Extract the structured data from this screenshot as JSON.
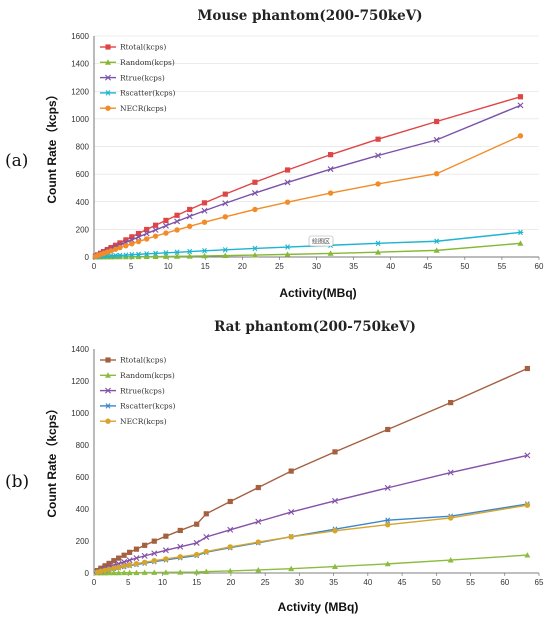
{
  "chart_data": [
    {
      "type": "line",
      "panel_label": "(a)",
      "title": "Mouse phantom(200-750keV)",
      "xlabel": "Activity(MBq)",
      "ylabel": "Count Rate（kcps）",
      "xlim": [
        0,
        60
      ],
      "ylim": [
        0,
        1600
      ],
      "xticks": [
        0,
        5,
        10,
        15,
        20,
        25,
        30,
        35,
        40,
        45,
        50,
        55,
        60
      ],
      "yticks": [
        0,
        200,
        400,
        600,
        800,
        1000,
        1200,
        1400,
        1600
      ],
      "grid": true,
      "legend_position": "top-left",
      "tooltip_text": "绘图区",
      "x": [
        0.2,
        0.5,
        0.9,
        1.3,
        1.8,
        2.3,
        2.9,
        3.5,
        4.3,
        5.1,
        6.0,
        7.1,
        8.3,
        9.7,
        11.2,
        12.9,
        14.9,
        17.7,
        21.7,
        26.1,
        31.9,
        38.3,
        46.2,
        57.5
      ],
      "series": [
        {
          "name": "Rtotal(kcps)",
          "color": "#e04545",
          "marker": "square",
          "values": [
            6,
            15,
            27,
            39,
            54,
            68,
            85,
            102,
            124,
            146,
            170,
            199,
            230,
            265,
            302,
            344,
            392,
            455,
            541,
            630,
            741,
            853,
            981,
            1160
          ]
        },
        {
          "name": "Random(kcps)",
          "color": "#86b833",
          "marker": "triangle",
          "values": [
            0,
            0,
            0,
            0,
            0,
            0,
            1,
            1,
            1,
            2,
            2,
            3,
            3,
            4,
            5,
            6,
            8,
            10,
            14,
            19,
            26,
            35,
            48,
            99
          ]
        },
        {
          "name": "Rtrue(kcps)",
          "color": "#7b52a8",
          "marker": "x",
          "values": [
            5,
            13,
            23,
            33,
            46,
            58,
            72,
            87,
            106,
            124,
            145,
            170,
            196,
            226,
            258,
            294,
            335,
            389,
            463,
            540,
            636,
            735,
            848,
            1098
          ]
        },
        {
          "name": "Rscatter(kcps)",
          "color": "#1cb4d0",
          "marker": "star",
          "values": [
            1,
            2,
            3,
            5,
            6,
            8,
            10,
            12,
            14,
            17,
            19,
            23,
            26,
            30,
            34,
            39,
            45,
            52,
            62,
            72,
            85,
            99,
            114,
            178
          ]
        },
        {
          "name": "NECR(kcps)",
          "color": "#f28c28",
          "marker": "circle",
          "values": [
            4,
            10,
            18,
            26,
            36,
            45,
            56,
            68,
            82,
            96,
            112,
            131,
            151,
            173,
            196,
            222,
            252,
            291,
            344,
            397,
            463,
            529,
            603,
            877
          ]
        }
      ]
    },
    {
      "type": "line",
      "panel_label": "(b)",
      "title": "Rat phantom(200-750keV)",
      "xlabel": "Activity (MBq)",
      "ylabel": "Count Rate（kcps）",
      "xlim": [
        0,
        65
      ],
      "ylim": [
        0,
        1400
      ],
      "xticks": [
        0,
        5,
        10,
        15,
        20,
        25,
        30,
        35,
        40,
        45,
        50,
        55,
        60,
        65
      ],
      "yticks": [
        0,
        200,
        400,
        600,
        800,
        1000,
        1200,
        1400
      ],
      "grid": false,
      "legend_position": "top-left",
      "x": [
        0.5,
        1.0,
        1.6,
        2.2,
        2.9,
        3.6,
        4.4,
        5.2,
        6.2,
        7.4,
        8.8,
        10.5,
        12.6,
        15.0,
        16.4,
        19.9,
        24.0,
        28.8,
        35.2,
        42.9,
        52.1,
        63.3
      ],
      "series": [
        {
          "name": "Rtotal(kcps)",
          "color": "#a4603f",
          "marker": "square",
          "values": [
            15,
            30,
            45,
            60,
            77,
            93,
            111,
            129,
            149,
            173,
            199,
            230,
            266,
            305,
            370,
            447,
            534,
            637,
            757,
            897,
            1065,
            1278
          ]
        },
        {
          "name": "Random(kcps)",
          "color": "#8cbc3f",
          "marker": "triangle",
          "values": [
            0,
            0,
            0,
            1,
            1,
            1,
            2,
            2,
            2,
            3,
            3,
            4,
            5,
            6,
            9,
            13,
            19,
            27,
            40,
            57,
            81,
            112
          ]
        },
        {
          "name": "Rtrue(kcps)",
          "color": "#8451a8",
          "marker": "x",
          "values": [
            9,
            18,
            28,
            37,
            48,
            58,
            69,
            80,
            93,
            107,
            123,
            142,
            164,
            188,
            225,
            270,
            321,
            381,
            451,
            532,
            628,
            735
          ]
        },
        {
          "name": "Rscatter(kcps)",
          "color": "#3c86cc",
          "marker": "star",
          "values": [
            5,
            10,
            15,
            21,
            27,
            33,
            39,
            46,
            53,
            61,
            71,
            82,
            95,
            109,
            130,
            158,
            189,
            227,
            274,
            330,
            355,
            431
          ]
        },
        {
          "name": "NECR(kcps)",
          "color": "#d6a52c",
          "marker": "circle",
          "values": [
            5,
            11,
            17,
            23,
            30,
            36,
            43,
            50,
            58,
            67,
            77,
            88,
            101,
            115,
            134,
            163,
            193,
            226,
            264,
            302,
            344,
            424
          ]
        }
      ]
    }
  ]
}
